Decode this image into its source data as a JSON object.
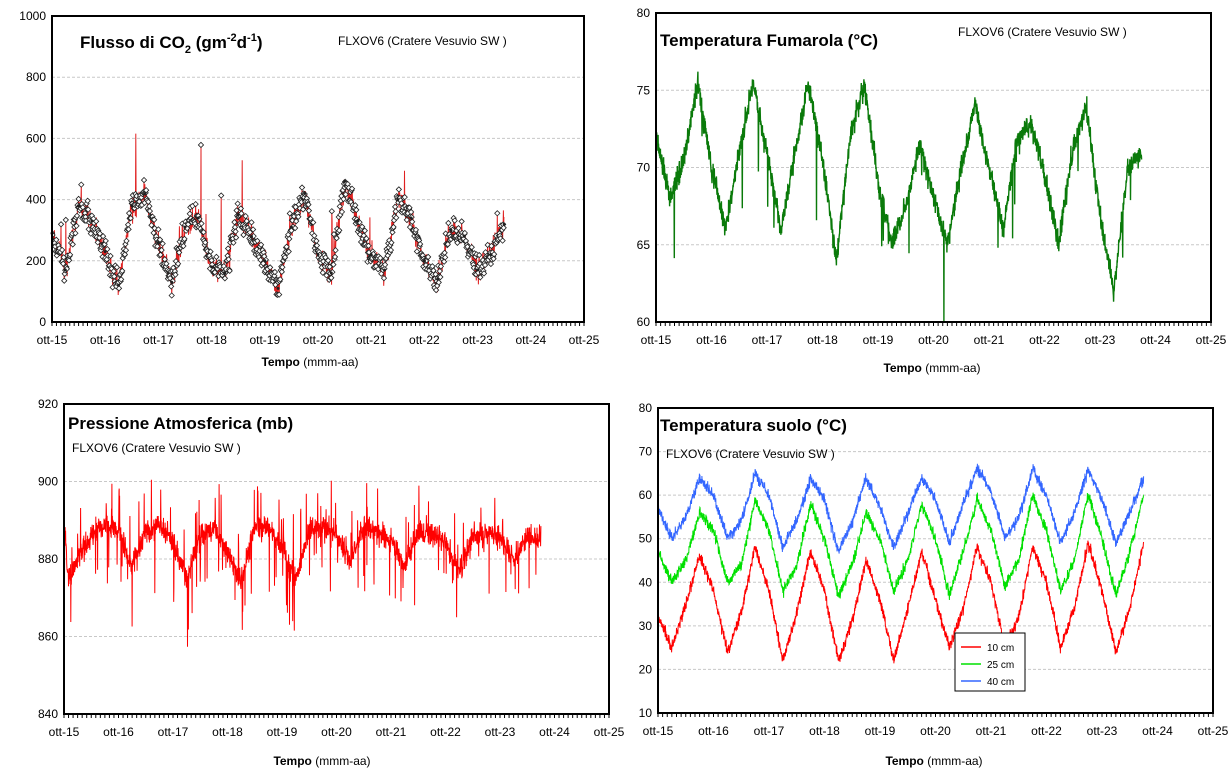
{
  "colors": {
    "frame": "#000000",
    "grid": "#c8c8c8",
    "co2_line": "#e02020",
    "co2_marker": "#202020",
    "fumarole": "#0a7a0a",
    "pressure": "#ff0000",
    "soil_10": "#ff0000",
    "soil_25": "#00e000",
    "soil_40": "#3366ff"
  },
  "charts": [
    {
      "title": "Flusso di CO",
      "title_sub": "2",
      "title_units": " (gm",
      "title_exp1": "-2",
      "title_mid": "d",
      "title_exp2": "-1",
      "title_close": ")",
      "station": "FLXOV6 (Cratere Vesuvio SW )",
      "xlabel_bold": "Tempo",
      "xlabel_units": " (mmm-aa)"
    },
    {
      "title": "Temperatura Fumarola (°C)",
      "station": "FLXOV6 (Cratere Vesuvio SW )",
      "xlabel_bold": "Tempo",
      "xlabel_units": " (mmm-aa)"
    },
    {
      "title": "Pressione Atmosferica (mb)",
      "station": "FLXOV6 (Cratere Vesuvio SW )",
      "xlabel_bold": "Tempo",
      "xlabel_units": " (mmm-aa)"
    },
    {
      "title": "Temperatura suolo (°C)",
      "station": "FLXOV6 (Cratere Vesuvio SW )",
      "xlabel_bold": "Tempo",
      "xlabel_units": " (mmm-aa)"
    }
  ],
  "chart_data": [
    {
      "type": "scatter",
      "title": "Flusso di CO2 (gm-2d-1)",
      "subtitle": "FLXOV6 (Cratere Vesuvio SW )",
      "xlabel": "Tempo (mmm-aa)",
      "ylabel": "",
      "x_ticks": [
        "ott-15",
        "ott-16",
        "ott-17",
        "ott-18",
        "ott-19",
        "ott-20",
        "ott-21",
        "ott-22",
        "ott-23",
        "ott-24",
        "ott-25"
      ],
      "y_ticks": [
        "0",
        "200",
        "400",
        "600",
        "800",
        "1000"
      ],
      "xlim": [
        "2015-10",
        "2025-10"
      ],
      "ylim": [
        0,
        1000
      ],
      "grid": true,
      "series": [
        {
          "x": [
            "2015-10",
            "2016-01",
            "2016-04",
            "2016-07",
            "2016-10",
            "2017-01",
            "2017-04",
            "2017-07",
            "2017-10",
            "2018-01",
            "2018-04",
            "2018-07",
            "2018-10",
            "2019-01",
            "2019-04",
            "2019-07",
            "2019-10",
            "2020-01",
            "2020-04",
            "2020-07",
            "2020-10",
            "2021-01",
            "2021-04",
            "2021-07",
            "2021-10",
            "2022-01",
            "2022-04",
            "2022-07",
            "2022-10",
            "2023-01",
            "2023-04",
            "2023-07",
            "2023-10",
            "2024-01",
            "2024-04"
          ],
          "values": [
            290,
            170,
            380,
            330,
            230,
            120,
            380,
            420,
            260,
            130,
            310,
            340,
            180,
            160,
            350,
            280,
            200,
            110,
            310,
            420,
            220,
            160,
            460,
            330,
            220,
            170,
            400,
            340,
            200,
            140,
            300,
            280,
            170,
            220,
            320
          ]
        }
      ]
    },
    {
      "type": "line",
      "title": "Temperatura Fumarola (°C)",
      "subtitle": "FLXOV6 (Cratere Vesuvio SW )",
      "xlabel": "Tempo (mmm-aa)",
      "ylabel": "",
      "x_ticks": [
        "ott-15",
        "ott-16",
        "ott-17",
        "ott-18",
        "ott-19",
        "ott-20",
        "ott-21",
        "ott-22",
        "ott-23",
        "ott-24",
        "ott-25"
      ],
      "y_ticks": [
        "60",
        "65",
        "70",
        "75",
        "80"
      ],
      "xlim": [
        "2015-10",
        "2025-10"
      ],
      "ylim": [
        60,
        80
      ],
      "grid": true,
      "series": [
        {
          "x": [
            "2015-10",
            "2016-01",
            "2016-04",
            "2016-07",
            "2016-10",
            "2017-01",
            "2017-04",
            "2017-07",
            "2017-10",
            "2018-01",
            "2018-04",
            "2018-07",
            "2018-10",
            "2019-01",
            "2019-04",
            "2019-07",
            "2019-10",
            "2020-01",
            "2020-04",
            "2020-07",
            "2020-10",
            "2021-01",
            "2021-04",
            "2021-07",
            "2021-10",
            "2022-01",
            "2022-04",
            "2022-07",
            "2022-10",
            "2023-01",
            "2023-04",
            "2023-07",
            "2023-10",
            "2024-01",
            "2024-04",
            "2024-07"
          ],
          "values": [
            72,
            68,
            70.5,
            75.5,
            70,
            66,
            71,
            75.5,
            71,
            66,
            71,
            75.5,
            70.5,
            64,
            72,
            75.5,
            69,
            65,
            67.5,
            71.5,
            68,
            65,
            70,
            74,
            70,
            66,
            71.5,
            73,
            69.5,
            65,
            71,
            74,
            67,
            62,
            70,
            71
          ]
        }
      ]
    },
    {
      "type": "line",
      "title": "Pressione Atmosferica (mb)",
      "subtitle": "FLXOV6 (Cratere Vesuvio SW )",
      "xlabel": "Tempo (mmm-aa)",
      "ylabel": "",
      "x_ticks": [
        "ott-15",
        "ott-16",
        "ott-17",
        "ott-18",
        "ott-19",
        "ott-20",
        "ott-21",
        "ott-22",
        "ott-23",
        "ott-24",
        "ott-25"
      ],
      "y_ticks": [
        "840",
        "860",
        "880",
        "900",
        "920"
      ],
      "xlim": [
        "2015-10",
        "2025-10"
      ],
      "ylim": [
        840,
        920
      ],
      "grid": true,
      "series": [
        {
          "x": [
            "2015-10",
            "2015-11",
            "2016-01",
            "2016-04",
            "2016-07",
            "2016-10",
            "2017-01",
            "2017-04",
            "2017-07",
            "2017-10",
            "2018-01",
            "2018-04",
            "2018-07",
            "2018-10",
            "2019-01",
            "2019-04",
            "2019-07",
            "2019-10",
            "2020-01",
            "2020-04",
            "2020-07",
            "2020-10",
            "2021-01",
            "2021-04",
            "2021-07",
            "2021-10",
            "2022-01",
            "2022-04",
            "2022-07",
            "2022-10",
            "2023-01",
            "2023-04",
            "2023-07",
            "2023-10",
            "2024-01",
            "2024-04",
            "2024-07"
          ],
          "values": [
            888,
            875,
            880,
            886,
            889,
            887,
            878,
            887,
            889,
            884,
            875,
            886,
            888,
            882,
            874,
            889,
            888,
            883,
            875,
            887,
            888,
            886,
            879,
            888,
            887,
            885,
            878,
            887,
            886,
            884,
            877,
            886,
            887,
            885,
            880,
            886,
            885
          ]
        }
      ]
    },
    {
      "type": "line",
      "title": "Temperatura suolo (°C)",
      "subtitle": "FLXOV6 (Cratere Vesuvio SW )",
      "xlabel": "Tempo (mmm-aa)",
      "ylabel": "",
      "x_ticks": [
        "ott-15",
        "ott-16",
        "ott-17",
        "ott-18",
        "ott-19",
        "ott-20",
        "ott-21",
        "ott-22",
        "ott-23",
        "ott-24",
        "ott-25"
      ],
      "y_ticks": [
        "10",
        "20",
        "30",
        "40",
        "50",
        "60",
        "70",
        "80"
      ],
      "xlim": [
        "2015-10",
        "2025-10"
      ],
      "ylim": [
        10,
        80
      ],
      "grid": true,
      "legend": "bottom-center",
      "x": [
        "2015-10",
        "2016-01",
        "2016-04",
        "2016-07",
        "2016-10",
        "2017-01",
        "2017-04",
        "2017-07",
        "2017-10",
        "2018-01",
        "2018-04",
        "2018-07",
        "2018-10",
        "2019-01",
        "2019-04",
        "2019-07",
        "2019-10",
        "2020-01",
        "2020-04",
        "2020-07",
        "2020-10",
        "2021-01",
        "2021-04",
        "2021-07",
        "2021-10",
        "2022-01",
        "2022-04",
        "2022-07",
        "2022-10",
        "2023-01",
        "2023-04",
        "2023-07",
        "2023-10",
        "2024-01",
        "2024-04",
        "2024-07"
      ],
      "series": [
        {
          "name": "10 cm",
          "values": [
            32,
            25,
            35,
            46,
            38,
            24,
            33,
            48,
            38,
            22,
            33,
            47,
            38,
            22,
            31,
            45,
            36,
            22,
            34,
            47,
            36,
            25,
            34,
            48,
            40,
            25,
            32,
            48,
            40,
            25,
            34,
            49,
            38,
            24,
            34,
            49
          ]
        },
        {
          "name": "25 cm",
          "values": [
            47,
            40,
            45,
            56,
            52,
            40,
            44,
            59,
            52,
            38,
            44,
            58,
            50,
            37,
            44,
            56,
            50,
            38,
            45,
            58,
            50,
            37,
            47,
            59,
            52,
            39,
            45,
            60,
            52,
            38,
            45,
            60,
            50,
            37,
            47,
            60
          ]
        },
        {
          "name": "40 cm",
          "values": [
            57,
            50,
            55,
            64,
            60,
            50,
            54,
            65,
            60,
            48,
            54,
            64,
            59,
            47,
            54,
            64,
            57,
            48,
            56,
            64,
            59,
            49,
            58,
            66,
            61,
            50,
            55,
            66,
            60,
            49,
            56,
            66,
            59,
            49,
            56,
            64
          ]
        }
      ]
    }
  ]
}
